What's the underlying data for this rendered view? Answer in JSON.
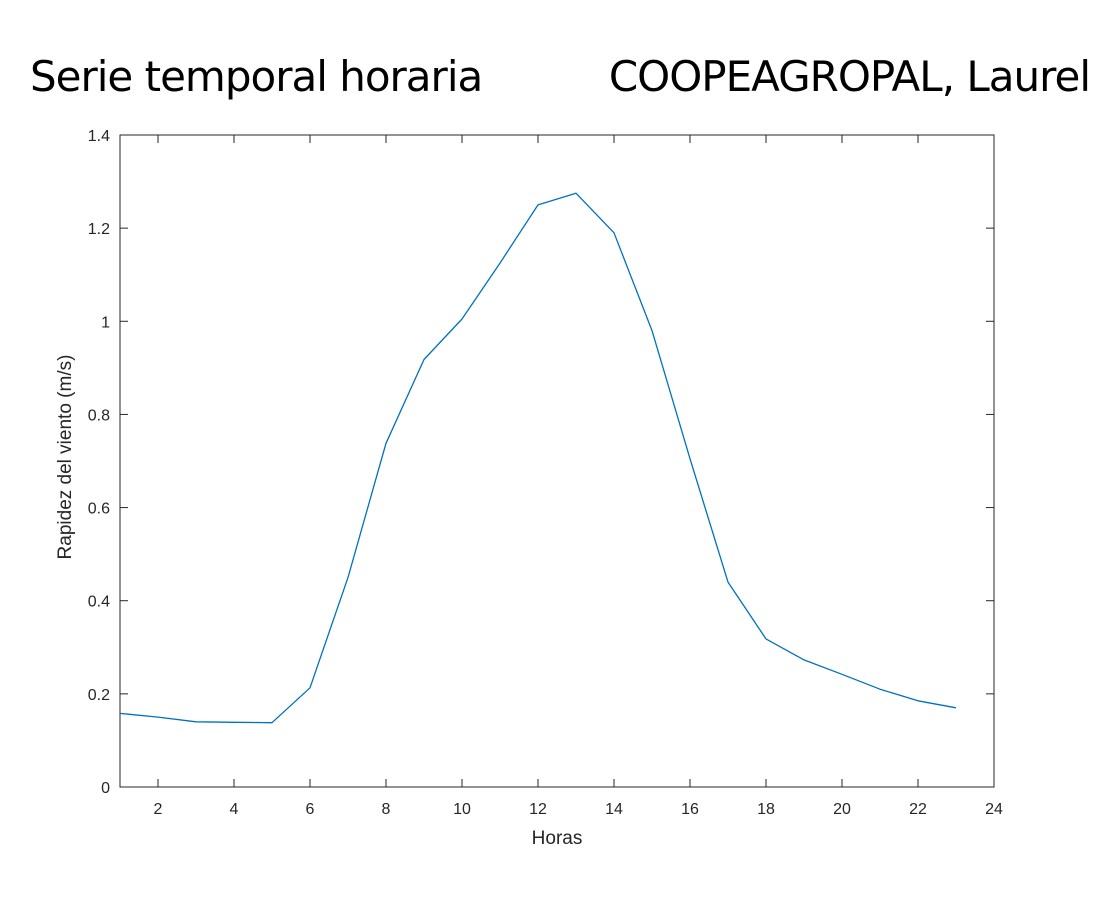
{
  "header": {
    "title": "Serie temporal horaria",
    "station": "COOPEAGROPAL, Laurel"
  },
  "chart_data": {
    "type": "line",
    "title": "Serie temporal horaria",
    "subtitle": "COOPEAGROPAL, Laurel",
    "xlabel": "Horas",
    "ylabel": "Rapidez del viento (m/s)",
    "xlim": [
      1,
      24
    ],
    "ylim": [
      0,
      1.4
    ],
    "xticks": [
      2,
      4,
      6,
      8,
      10,
      12,
      14,
      16,
      18,
      20,
      22,
      24
    ],
    "yticks": [
      0,
      0.2,
      0.4,
      0.6,
      0.8,
      1,
      1.2,
      1.4
    ],
    "grid": false,
    "series": [
      {
        "color": "#0072bd",
        "x": [
          1,
          2,
          3,
          4,
          5,
          6,
          7,
          8,
          9,
          10,
          11,
          12,
          13,
          14,
          15,
          16,
          17,
          18,
          19,
          20,
          21,
          22,
          23
        ],
        "y": [
          0.158,
          0.15,
          0.14,
          0.139,
          0.138,
          0.213,
          0.45,
          0.738,
          0.918,
          1.005,
          1.125,
          1.25,
          1.275,
          1.19,
          0.98,
          0.705,
          0.44,
          0.318,
          0.273,
          0.242,
          0.21,
          0.185,
          0.17
        ]
      }
    ]
  }
}
